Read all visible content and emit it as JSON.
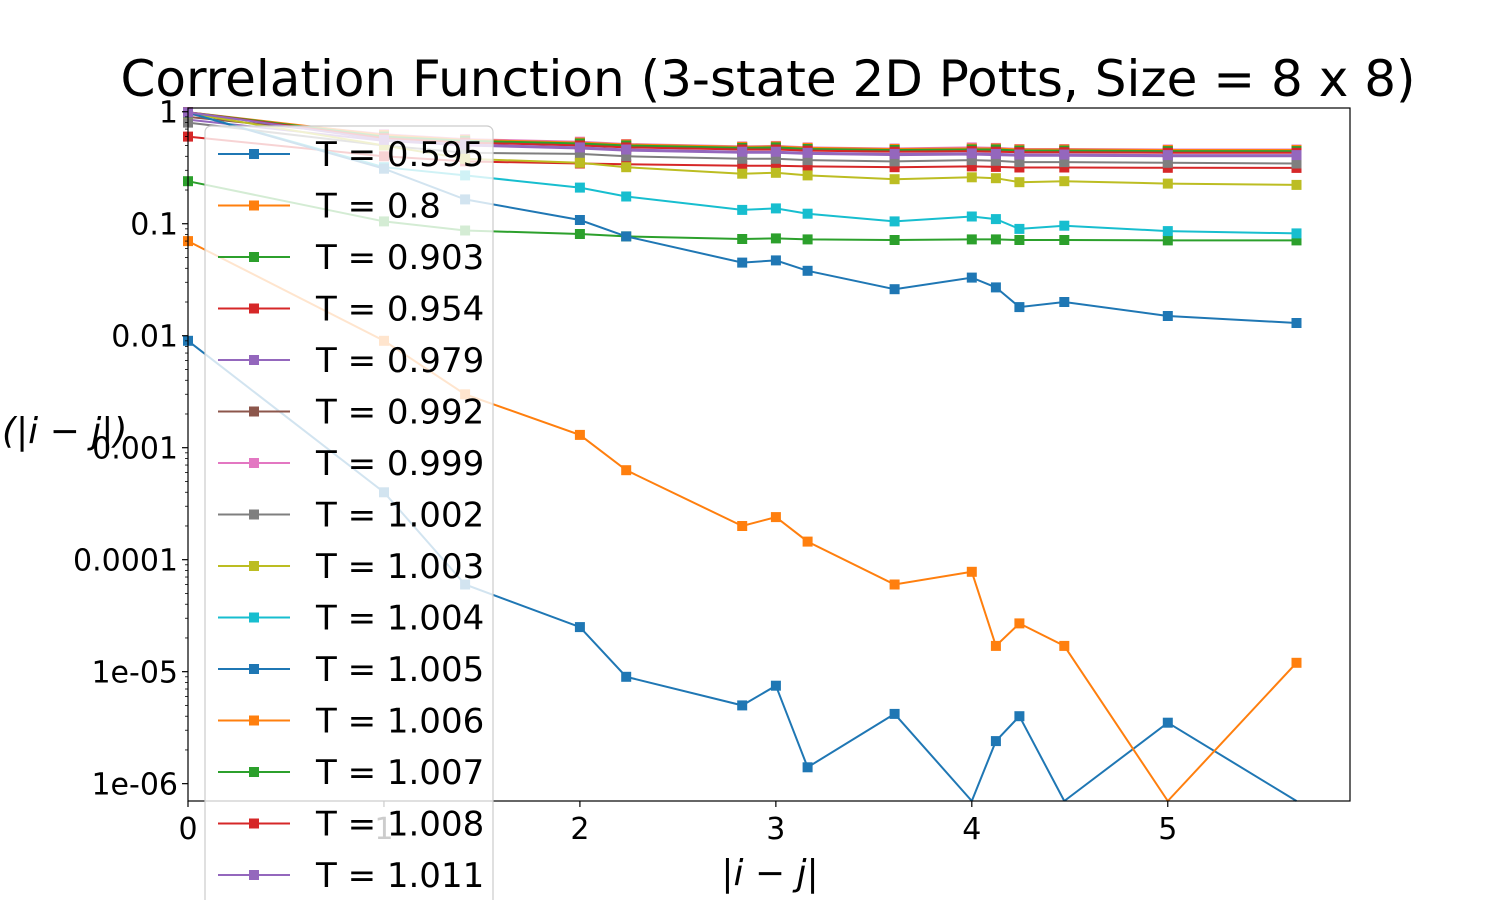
{
  "chart_data": {
    "type": "line",
    "title": "Correlation Function (3-state 2D Potts, Size = 8 x 8)",
    "xlabel": "|i − j|",
    "ylabel": "(|i − j|)",
    "yscale": "log",
    "xlim": [
      0,
      5.93
    ],
    "ylim": [
      7e-07,
      1.08
    ],
    "x_ticks": [
      0,
      1,
      2,
      3,
      4,
      5
    ],
    "x_tick_labels": [
      "0",
      "1",
      "2",
      "3",
      "4",
      "5"
    ],
    "y_ticks": [
      1,
      0.1,
      0.01,
      0.001,
      0.0001,
      1e-05,
      1e-06
    ],
    "y_tick_labels": [
      "1",
      "0.1",
      "0.01",
      "0.001",
      "0.0001",
      "1e-05",
      "1e-06"
    ],
    "grid": false,
    "legend_position": "upper left",
    "x": [
      0,
      1,
      1.414,
      2,
      2.236,
      2.828,
      3,
      3.162,
      3.606,
      4,
      4.123,
      4.243,
      4.472,
      5,
      5.657
    ],
    "series": [
      {
        "name": "T = 0.595",
        "color": "#1f77b4",
        "values": [
          0.009,
          0.0004,
          6e-05,
          2.5e-05,
          9e-06,
          5e-06,
          7.5e-06,
          1.4e-06,
          4.2e-06,
          0,
          2.4e-06,
          4e-06,
          0,
          3.5e-06,
          0
        ]
      },
      {
        "name": "T = 0.8",
        "color": "#ff7f0e",
        "values": [
          0.07,
          0.009,
          0.003,
          0.0013,
          0.00063,
          0.0002,
          0.00024,
          0.000145,
          6e-05,
          7.8e-05,
          1.7e-05,
          2.7e-05,
          1.7e-05,
          0,
          1.2e-05
        ]
      },
      {
        "name": "T = 0.903",
        "color": "#2ca02c",
        "values": [
          0.24,
          0.105,
          0.087,
          0.081,
          0.077,
          0.073,
          0.074,
          0.0725,
          0.0715,
          0.0725,
          0.0725,
          0.0715,
          0.0715,
          0.071,
          0.071
        ]
      },
      {
        "name": "T = 0.954",
        "color": "#d62728",
        "values": [
          0.6,
          0.4,
          0.36,
          0.345,
          0.34,
          0.33,
          0.33,
          0.325,
          0.32,
          0.325,
          0.322,
          0.318,
          0.318,
          0.316,
          0.315
        ]
      },
      {
        "name": "T = 0.979",
        "color": "#9467bd",
        "values": [
          0.85,
          0.55,
          0.5,
          0.47,
          0.45,
          0.43,
          0.43,
          0.42,
          0.41,
          0.415,
          0.41,
          0.405,
          0.405,
          0.4,
          0.4
        ]
      },
      {
        "name": "T = 0.992",
        "color": "#8c564b",
        "values": [
          0.9,
          0.6,
          0.54,
          0.51,
          0.49,
          0.47,
          0.47,
          0.46,
          0.45,
          0.455,
          0.45,
          0.445,
          0.445,
          0.44,
          0.44
        ]
      },
      {
        "name": "T = 0.999",
        "color": "#e377c2",
        "values": [
          0.95,
          0.63,
          0.57,
          0.54,
          0.515,
          0.49,
          0.495,
          0.48,
          0.47,
          0.48,
          0.475,
          0.465,
          0.465,
          0.46,
          0.46
        ]
      },
      {
        "name": "T = 1.002",
        "color": "#7f7f7f",
        "values": [
          0.8,
          0.5,
          0.43,
          0.42,
          0.4,
          0.38,
          0.38,
          0.37,
          0.36,
          0.37,
          0.365,
          0.355,
          0.355,
          0.35,
          0.345
        ]
      },
      {
        "name": "T = 1.003",
        "color": "#bcbd22",
        "values": [
          0.97,
          0.5,
          0.38,
          0.35,
          0.32,
          0.28,
          0.285,
          0.27,
          0.25,
          0.26,
          0.255,
          0.235,
          0.24,
          0.228,
          0.222
        ]
      },
      {
        "name": "T = 1.004",
        "color": "#17becf",
        "values": [
          0.98,
          0.32,
          0.27,
          0.21,
          0.175,
          0.133,
          0.137,
          0.123,
          0.105,
          0.116,
          0.11,
          0.09,
          0.096,
          0.086,
          0.082
        ]
      },
      {
        "name": "T = 1.005",
        "color": "#1f77b4",
        "values": [
          0.98,
          0.31,
          0.165,
          0.108,
          0.077,
          0.045,
          0.047,
          0.038,
          0.026,
          0.033,
          0.027,
          0.018,
          0.02,
          0.015,
          0.013
        ]
      },
      {
        "name": "T = 1.006",
        "color": "#ff7f0e",
        "values": [
          0.99,
          0.62,
          0.56,
          0.53,
          0.51,
          0.485,
          0.49,
          0.475,
          0.465,
          0.47,
          0.47,
          0.46,
          0.46,
          0.455,
          0.455
        ]
      },
      {
        "name": "T = 1.007",
        "color": "#2ca02c",
        "values": [
          0.99,
          0.6,
          0.55,
          0.52,
          0.5,
          0.475,
          0.48,
          0.465,
          0.455,
          0.46,
          0.46,
          0.45,
          0.45,
          0.445,
          0.445
        ]
      },
      {
        "name": "T = 1.008",
        "color": "#d62728",
        "values": [
          0.99,
          0.58,
          0.53,
          0.5,
          0.48,
          0.46,
          0.46,
          0.45,
          0.44,
          0.445,
          0.44,
          0.435,
          0.435,
          0.43,
          0.43
        ]
      },
      {
        "name": "T = 1.011",
        "color": "#9467bd",
        "values": [
          0.99,
          0.56,
          0.51,
          0.48,
          0.46,
          0.44,
          0.44,
          0.43,
          0.42,
          0.425,
          0.42,
          0.415,
          0.415,
          0.41,
          0.41
        ]
      }
    ]
  }
}
